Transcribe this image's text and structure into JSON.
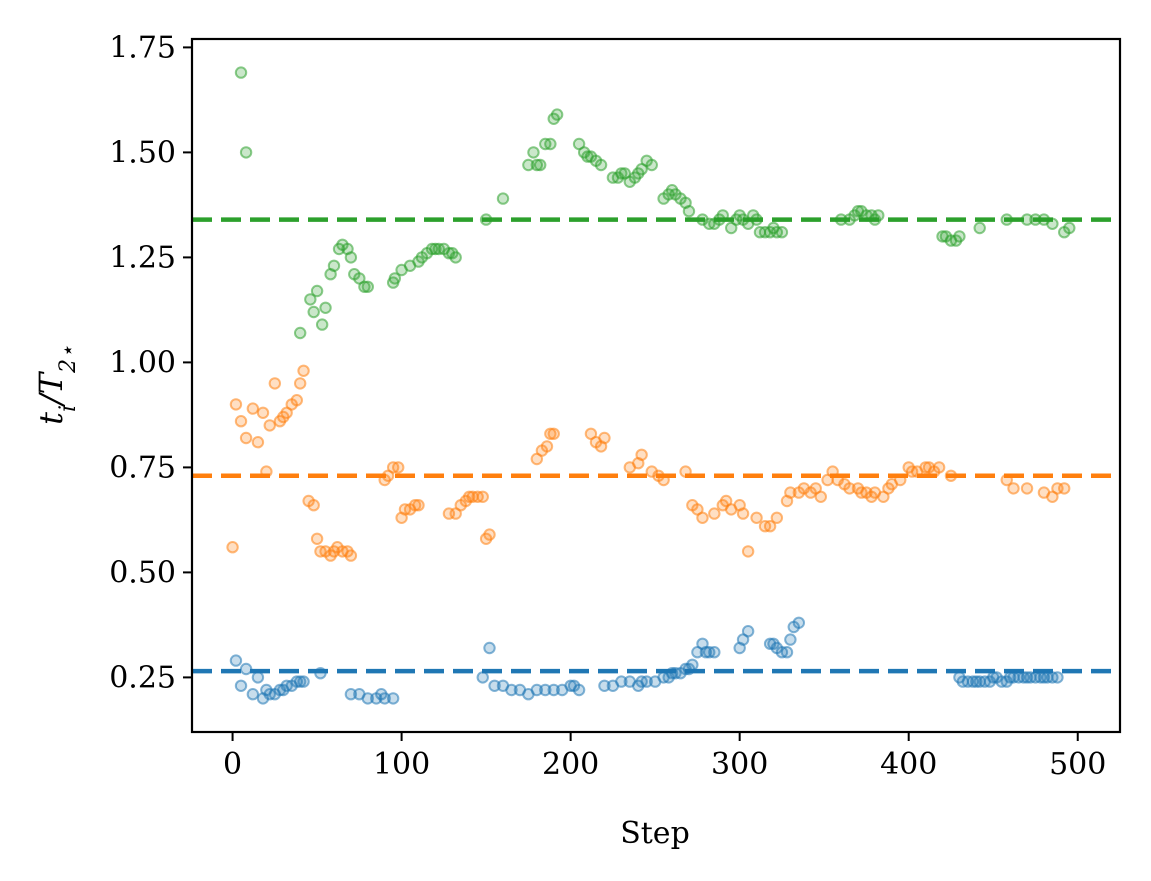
{
  "chart_data": {
    "type": "scatter",
    "xlabel": "Step",
    "ylabel": "t_i/T_2⋆",
    "ylabel_parts": {
      "main": "t",
      "sub1": "i",
      "slash": "/T",
      "sub2": "2⋆"
    },
    "xlim": [
      -24,
      525
    ],
    "ylim": [
      0.12,
      1.77
    ],
    "x_ticks": [
      0,
      100,
      200,
      300,
      400,
      500
    ],
    "x_tick_labels": [
      "0",
      "100",
      "200",
      "300",
      "400",
      "500"
    ],
    "y_ticks": [
      0.25,
      0.5,
      0.75,
      1.0,
      1.25,
      1.5,
      1.75
    ],
    "y_tick_labels": [
      "0.25",
      "0.50",
      "0.75",
      "1.00",
      "1.25",
      "1.50",
      "1.75"
    ],
    "grid": false,
    "series": [
      {
        "color": "#2ca02c",
        "reference_line": 1.34,
        "x": [
          5,
          8,
          40,
          46,
          48,
          50,
          53,
          55,
          58,
          60,
          63,
          65,
          68,
          70,
          72,
          75,
          78,
          80,
          95,
          96,
          100,
          105,
          110,
          112,
          115,
          118,
          120,
          122,
          125,
          128,
          130,
          132,
          150,
          160,
          175,
          178,
          180,
          182,
          185,
          188,
          190,
          192,
          205,
          208,
          210,
          212,
          215,
          218,
          225,
          228,
          230,
          232,
          235,
          238,
          240,
          242,
          245,
          248,
          255,
          258,
          260,
          262,
          265,
          268,
          270,
          278,
          282,
          285,
          288,
          290,
          295,
          298,
          300,
          302,
          305,
          308,
          310,
          312,
          315,
          318,
          320,
          322,
          325,
          360,
          365,
          368,
          370,
          372,
          375,
          378,
          380,
          382,
          420,
          422,
          425,
          428,
          430,
          442,
          458,
          470,
          475,
          480,
          485,
          492,
          495
        ],
        "y": [
          1.69,
          1.5,
          1.07,
          1.15,
          1.12,
          1.17,
          1.09,
          1.13,
          1.21,
          1.23,
          1.27,
          1.28,
          1.27,
          1.25,
          1.21,
          1.2,
          1.18,
          1.18,
          1.19,
          1.2,
          1.22,
          1.23,
          1.24,
          1.25,
          1.26,
          1.27,
          1.27,
          1.27,
          1.27,
          1.26,
          1.26,
          1.25,
          1.34,
          1.39,
          1.47,
          1.5,
          1.47,
          1.47,
          1.52,
          1.52,
          1.58,
          1.59,
          1.52,
          1.5,
          1.49,
          1.49,
          1.48,
          1.47,
          1.44,
          1.44,
          1.45,
          1.45,
          1.43,
          1.44,
          1.45,
          1.46,
          1.48,
          1.47,
          1.39,
          1.4,
          1.41,
          1.4,
          1.39,
          1.38,
          1.36,
          1.34,
          1.33,
          1.33,
          1.34,
          1.35,
          1.32,
          1.34,
          1.35,
          1.34,
          1.33,
          1.35,
          1.34,
          1.31,
          1.31,
          1.31,
          1.32,
          1.31,
          1.31,
          1.34,
          1.34,
          1.35,
          1.36,
          1.36,
          1.35,
          1.35,
          1.34,
          1.35,
          1.3,
          1.3,
          1.29,
          1.29,
          1.3,
          1.32,
          1.34,
          1.34,
          1.34,
          1.34,
          1.33,
          1.31,
          1.32
        ]
      },
      {
        "color": "#ff7f0e",
        "reference_line": 0.73,
        "x": [
          0,
          2,
          5,
          8,
          12,
          15,
          18,
          20,
          22,
          25,
          28,
          30,
          32,
          35,
          38,
          40,
          42,
          45,
          48,
          50,
          52,
          55,
          58,
          60,
          62,
          65,
          68,
          70,
          90,
          92,
          95,
          98,
          100,
          102,
          105,
          108,
          110,
          128,
          132,
          135,
          138,
          140,
          142,
          145,
          148,
          150,
          152,
          180,
          183,
          186,
          188,
          190,
          212,
          215,
          218,
          220,
          235,
          240,
          242,
          248,
          252,
          255,
          268,
          272,
          275,
          278,
          285,
          290,
          292,
          295,
          300,
          302,
          305,
          310,
          315,
          318,
          322,
          328,
          330,
          335,
          338,
          342,
          345,
          348,
          352,
          355,
          358,
          362,
          365,
          370,
          372,
          375,
          378,
          380,
          385,
          388,
          390,
          395,
          400,
          402,
          405,
          410,
          412,
          415,
          418,
          425,
          458,
          462,
          470,
          480,
          485,
          488,
          492
        ],
        "y": [
          0.56,
          0.9,
          0.86,
          0.82,
          0.89,
          0.81,
          0.88,
          0.74,
          0.85,
          0.95,
          0.86,
          0.87,
          0.88,
          0.9,
          0.91,
          0.95,
          0.98,
          0.67,
          0.66,
          0.58,
          0.55,
          0.55,
          0.54,
          0.55,
          0.56,
          0.55,
          0.55,
          0.54,
          0.72,
          0.73,
          0.75,
          0.75,
          0.63,
          0.65,
          0.65,
          0.66,
          0.66,
          0.64,
          0.64,
          0.66,
          0.67,
          0.68,
          0.68,
          0.68,
          0.68,
          0.58,
          0.59,
          0.77,
          0.79,
          0.8,
          0.83,
          0.83,
          0.83,
          0.81,
          0.8,
          0.82,
          0.75,
          0.76,
          0.78,
          0.74,
          0.73,
          0.72,
          0.74,
          0.66,
          0.65,
          0.63,
          0.64,
          0.66,
          0.67,
          0.65,
          0.66,
          0.64,
          0.55,
          0.63,
          0.61,
          0.61,
          0.63,
          0.67,
          0.69,
          0.69,
          0.7,
          0.69,
          0.7,
          0.68,
          0.72,
          0.74,
          0.72,
          0.71,
          0.7,
          0.7,
          0.69,
          0.69,
          0.68,
          0.69,
          0.68,
          0.7,
          0.71,
          0.72,
          0.75,
          0.74,
          0.74,
          0.75,
          0.75,
          0.74,
          0.75,
          0.73,
          0.72,
          0.7,
          0.7,
          0.69,
          0.68,
          0.7,
          0.7
        ]
      },
      {
        "color": "#1f77b4",
        "reference_line": 0.265,
        "x": [
          2,
          5,
          8,
          12,
          15,
          18,
          20,
          22,
          25,
          28,
          30,
          32,
          35,
          38,
          40,
          42,
          52,
          70,
          75,
          80,
          85,
          88,
          90,
          95,
          148,
          152,
          155,
          160,
          165,
          170,
          175,
          180,
          185,
          190,
          195,
          200,
          202,
          205,
          220,
          225,
          230,
          235,
          240,
          242,
          245,
          250,
          255,
          258,
          260,
          262,
          265,
          268,
          270,
          272,
          275,
          278,
          280,
          282,
          285,
          300,
          302,
          305,
          318,
          320,
          322,
          325,
          328,
          330,
          332,
          335,
          430,
          432,
          435,
          438,
          440,
          442,
          445,
          448,
          450,
          452,
          455,
          458,
          460,
          462,
          465,
          468,
          470,
          472,
          475,
          478,
          480,
          482,
          485,
          488
        ],
        "y": [
          0.29,
          0.23,
          0.27,
          0.21,
          0.25,
          0.2,
          0.22,
          0.21,
          0.21,
          0.22,
          0.22,
          0.23,
          0.23,
          0.24,
          0.24,
          0.24,
          0.26,
          0.21,
          0.21,
          0.2,
          0.2,
          0.21,
          0.2,
          0.2,
          0.25,
          0.32,
          0.23,
          0.23,
          0.22,
          0.22,
          0.21,
          0.22,
          0.22,
          0.22,
          0.22,
          0.23,
          0.23,
          0.22,
          0.23,
          0.23,
          0.24,
          0.24,
          0.23,
          0.24,
          0.24,
          0.24,
          0.25,
          0.25,
          0.26,
          0.26,
          0.26,
          0.27,
          0.27,
          0.28,
          0.31,
          0.33,
          0.31,
          0.31,
          0.31,
          0.32,
          0.34,
          0.36,
          0.33,
          0.33,
          0.32,
          0.31,
          0.31,
          0.34,
          0.37,
          0.38,
          0.25,
          0.24,
          0.24,
          0.24,
          0.24,
          0.24,
          0.24,
          0.24,
          0.25,
          0.25,
          0.24,
          0.24,
          0.25,
          0.25,
          0.25,
          0.25,
          0.25,
          0.25,
          0.25,
          0.25,
          0.25,
          0.25,
          0.25,
          0.25
        ]
      }
    ]
  }
}
